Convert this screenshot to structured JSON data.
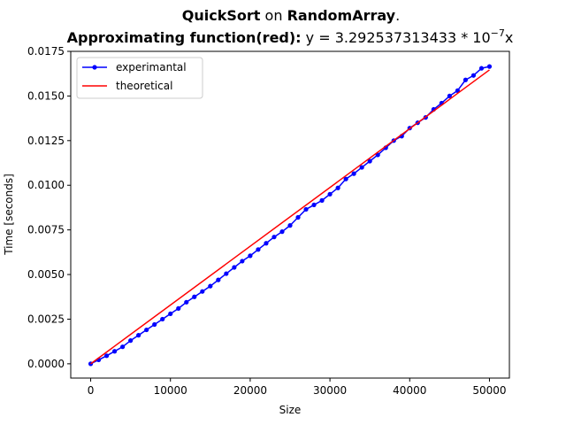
{
  "chart_data": {
    "type": "line",
    "title": {
      "line1": {
        "algo": "QuickSort",
        "on": " on ",
        "input": "RandomArray",
        "dot": "."
      },
      "line2": {
        "label": "Approximating function(red):",
        "eq_prefix": " y = 3.292537313433 * 10",
        "eq_exp": "−7",
        "eq_suffix": "x"
      }
    },
    "xlabel": "Size",
    "ylabel": "Time [seconds]",
    "xlim": [
      -2500,
      52500
    ],
    "ylim": [
      -0.0008,
      0.0175
    ],
    "xticks": [
      0,
      10000,
      20000,
      30000,
      40000,
      50000
    ],
    "xtick_labels": [
      "0",
      "10000",
      "20000",
      "30000",
      "40000",
      "50000"
    ],
    "yticks": [
      0.0,
      0.0025,
      0.005,
      0.0075,
      0.01,
      0.0125,
      0.015,
      0.0175
    ],
    "ytick_labels": [
      "0.0000",
      "0.0025",
      "0.0050",
      "0.0075",
      "0.0100",
      "0.0125",
      "0.0150",
      "0.0175"
    ],
    "grid": false,
    "legend_position": "top-left",
    "series": [
      {
        "name": "experimantal",
        "color": "#0000ff",
        "marker": "circle",
        "x": [
          0,
          1000,
          2000,
          3000,
          4000,
          5000,
          6000,
          7000,
          8000,
          9000,
          10000,
          11000,
          12000,
          13000,
          14000,
          15000,
          16000,
          17000,
          18000,
          19000,
          20000,
          21000,
          22000,
          23000,
          24000,
          25000,
          26000,
          27000,
          28000,
          29000,
          30000,
          31000,
          32000,
          33000,
          34000,
          35000,
          36000,
          37000,
          38000,
          39000,
          40000,
          41000,
          42000,
          43000,
          44000,
          45000,
          46000,
          47000,
          48000,
          49000,
          50000
        ],
        "y": [
          0.0,
          0.00022,
          0.00045,
          0.0007,
          0.00095,
          0.0013,
          0.0016,
          0.0019,
          0.0022,
          0.0025,
          0.0028,
          0.0031,
          0.00345,
          0.00375,
          0.00405,
          0.00435,
          0.0047,
          0.00505,
          0.0054,
          0.00575,
          0.00605,
          0.0064,
          0.00675,
          0.0071,
          0.0074,
          0.00775,
          0.0082,
          0.00865,
          0.0089,
          0.00915,
          0.0095,
          0.00985,
          0.01035,
          0.01065,
          0.011,
          0.01135,
          0.0117,
          0.0121,
          0.0125,
          0.01275,
          0.0132,
          0.0135,
          0.0138,
          0.01425,
          0.0146,
          0.015,
          0.0153,
          0.0159,
          0.01615,
          0.01655,
          0.01665
        ]
      },
      {
        "name": "theoretical",
        "color": "#ff0000",
        "marker": "none",
        "x": [
          0,
          50000
        ],
        "y": [
          0.0,
          0.0164627
        ]
      }
    ]
  }
}
